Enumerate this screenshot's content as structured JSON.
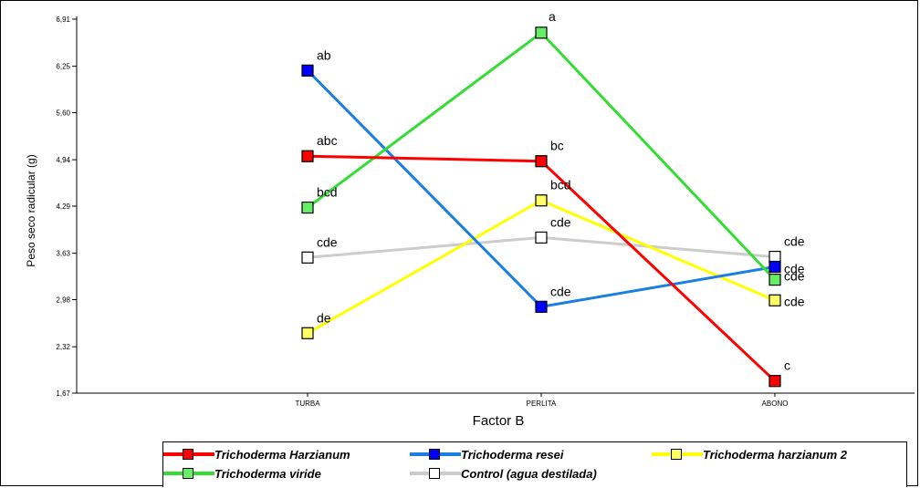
{
  "chart_data": {
    "type": "line",
    "title": "",
    "xlabel": "Factor B",
    "ylabel": "Peso seco radicular (g)",
    "categories": [
      "TURBA",
      "PERLITA",
      "ABONO"
    ],
    "yticks": [
      "6,91",
      "6,25",
      "5,60",
      "4,94",
      "4,29",
      "3,63",
      "2,98",
      "2,32",
      "1,67"
    ],
    "ylim": [
      1.67,
      6.91
    ],
    "grid": false,
    "legend_position": "bottom",
    "series": [
      {
        "name": "Trichoderma Harzianum",
        "color": "#ff0000",
        "values": [
          4.99,
          4.92,
          1.84
        ],
        "labels": [
          "abc",
          "bc",
          "c"
        ]
      },
      {
        "name": "Trichoderma resei",
        "color": "#1a7fe0",
        "values": [
          6.19,
          2.88,
          3.44
        ],
        "labels": [
          "ab",
          "cde",
          "cde"
        ]
      },
      {
        "name": "Trichoderma harzianum 2",
        "color": "#ffff00",
        "values": [
          2.51,
          4.37,
          2.97
        ],
        "labels": [
          "de",
          "bcd",
          "cde"
        ]
      },
      {
        "name": "Trichoderma viride",
        "color": "#33dd33",
        "values": [
          4.27,
          6.72,
          3.26
        ],
        "labels": [
          "bcd",
          "a",
          "cde"
        ]
      },
      {
        "name": "Control (agua destilada)",
        "color": "#cccccc",
        "values": [
          3.57,
          3.85,
          3.58
        ],
        "labels": [
          "cde",
          "cde",
          "cde"
        ]
      }
    ]
  },
  "colors": {
    "marker_red": "#ff0000",
    "marker_blue": "#0000ff",
    "marker_yellow": "#ffff66",
    "marker_green": "#66ee66",
    "marker_white": "#ffffff"
  }
}
